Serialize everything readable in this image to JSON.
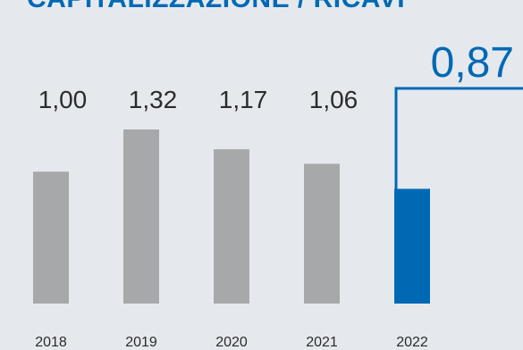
{
  "chart_data": {
    "type": "bar",
    "title": "CAPITALIZZAZIONE / RICAVI",
    "categories": [
      "2018",
      "2019",
      "2020",
      "2021",
      "2022"
    ],
    "values": [
      1.0,
      1.32,
      1.17,
      1.06,
      0.87
    ],
    "value_labels": [
      "1,00",
      "1,32",
      "1,17",
      "1,06",
      "0,87"
    ],
    "highlight_index": 4,
    "xlabel": "",
    "ylabel": "",
    "ylim": [
      0,
      1.32
    ],
    "grid": false,
    "legend": "none"
  },
  "colors": {
    "background": "#e5e9ee",
    "bar": "#a7a8aa",
    "highlight": "#0069b4",
    "title": "#0069b4",
    "text": "#2b2b2b"
  }
}
